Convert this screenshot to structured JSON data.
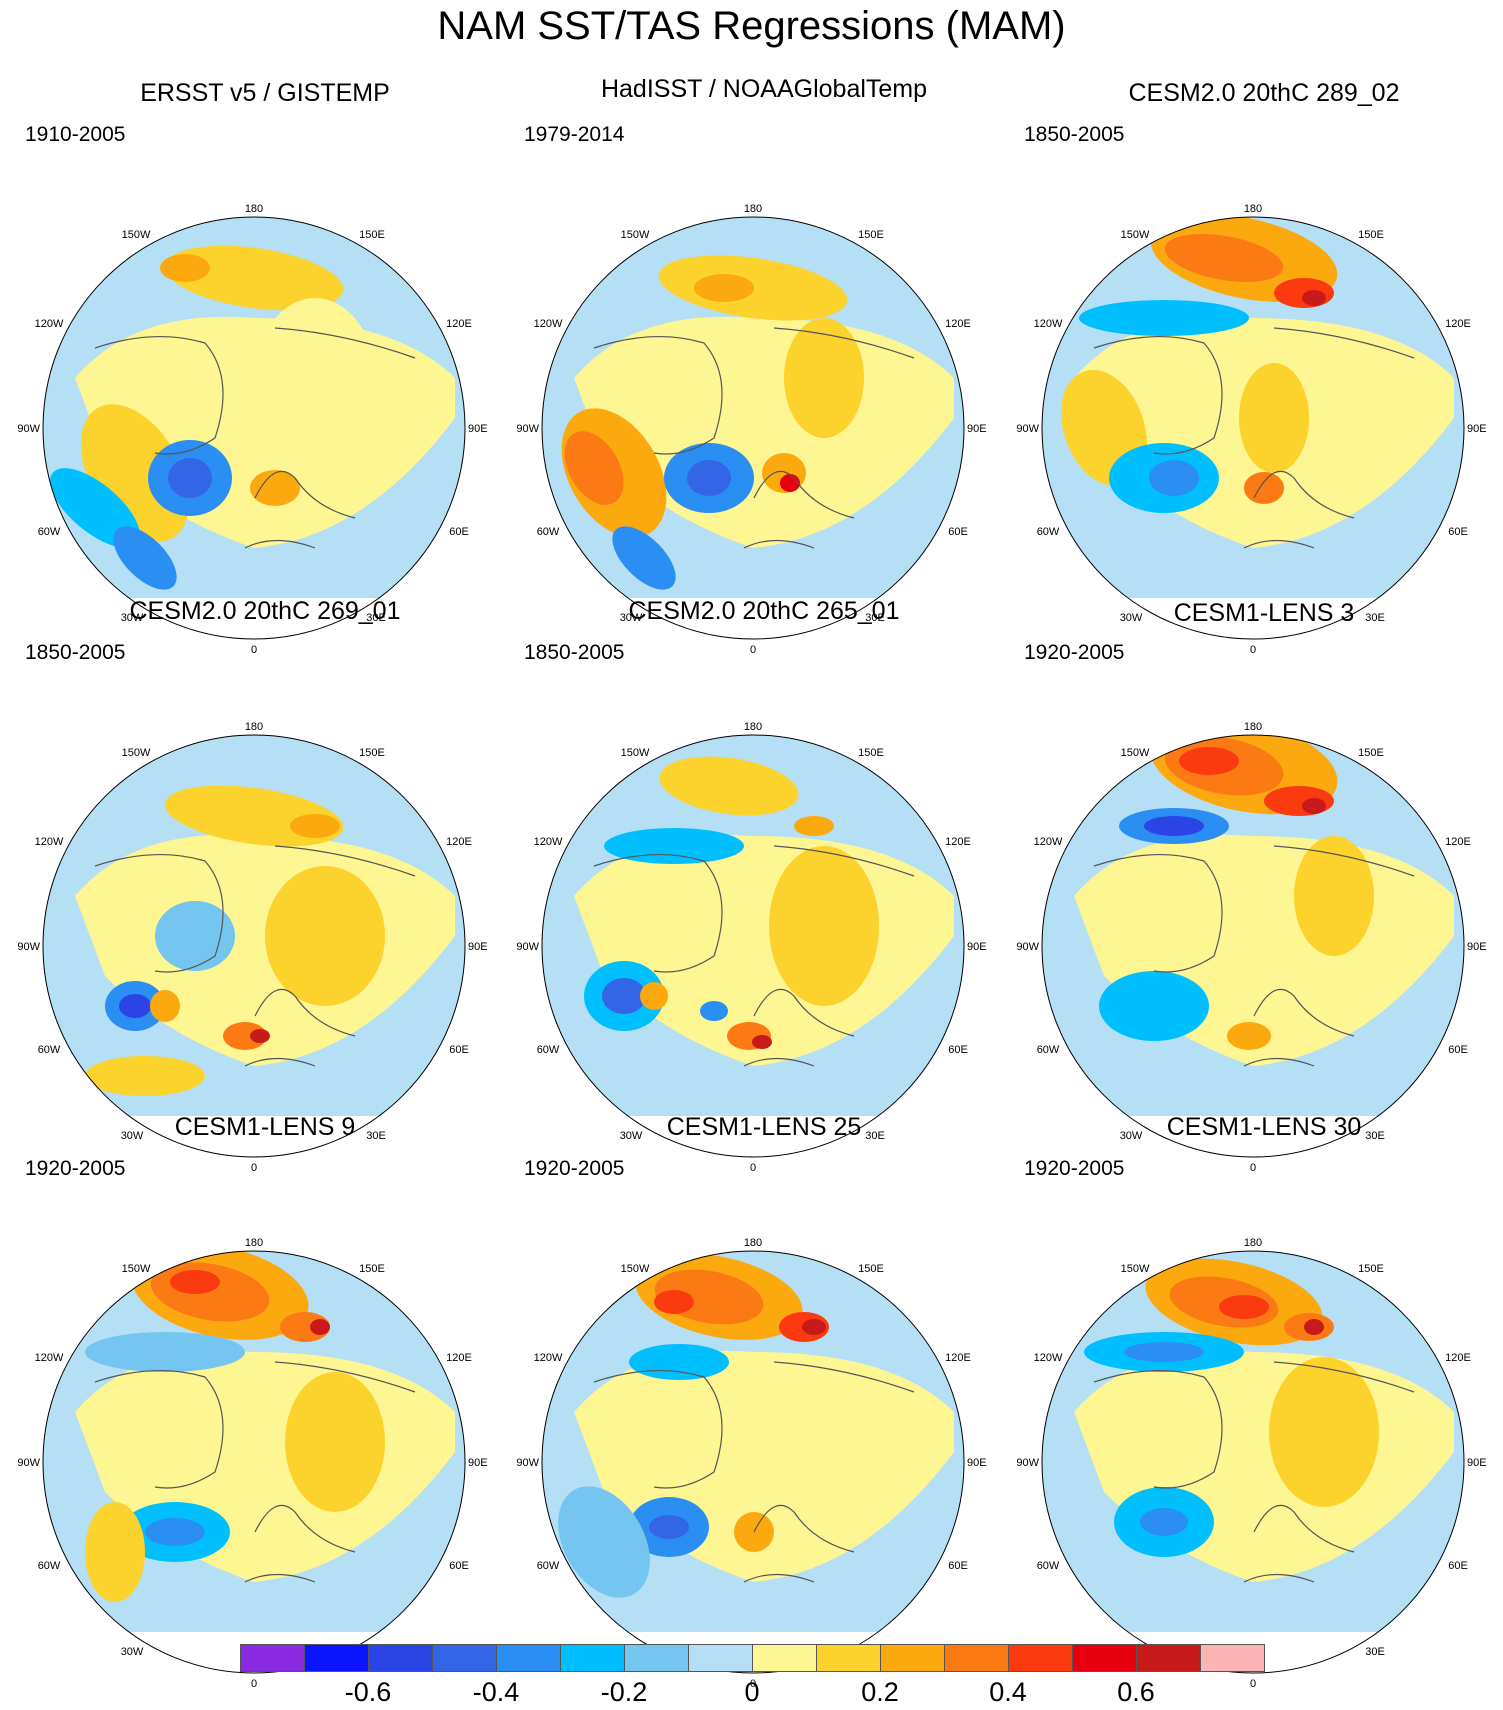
{
  "title": "NAM SST/TAS Regressions (MAM)",
  "lon_labels": {
    "top": "180",
    "bottom": "0",
    "left_upper": "120W",
    "left_mid": "90W",
    "left_lower": "60W",
    "right_upper": "120E",
    "right_mid": "90E",
    "right_lower": "60E",
    "top_left": "150W",
    "top_right": "150E",
    "bottom_left": "30W",
    "bottom_right": "30E"
  },
  "panels": [
    {
      "title": "ERSST v5 / GISTEMP",
      "period": "1910-2005"
    },
    {
      "title": "HadISST / NOAAGlobalTemp",
      "period": "1979-2014"
    },
    {
      "title": "CESM2.0 20thC 289_02",
      "period": "1850-2005"
    },
    {
      "title": "CESM2.0 20thC 269_01",
      "period": "1850-2005"
    },
    {
      "title": "CESM2.0 20thC 265_01",
      "period": "1850-2005"
    },
    {
      "title": "CESM1-LENS 3",
      "period": "1920-2005"
    },
    {
      "title": "CESM1-LENS 9",
      "period": "1920-2005"
    },
    {
      "title": "CESM1-LENS 25",
      "period": "1920-2005"
    },
    {
      "title": "CESM1-LENS 30",
      "period": "1920-2005"
    }
  ],
  "colorbar": {
    "colors": [
      "#8a2be2",
      "#0a14ff",
      "#2a44e6",
      "#3366e6",
      "#2b8ef2",
      "#00bfff",
      "#74c5f0",
      "#b4dff4",
      "#fdf693",
      "#fcd22c",
      "#fca910",
      "#fc7a14",
      "#fc3a10",
      "#e80010",
      "#c81a1a",
      "#fcb4b4"
    ],
    "labels": [
      "-0.6",
      "-0.4",
      "-0.2",
      "0",
      "0.2",
      "0.4",
      "0.6"
    ]
  }
}
